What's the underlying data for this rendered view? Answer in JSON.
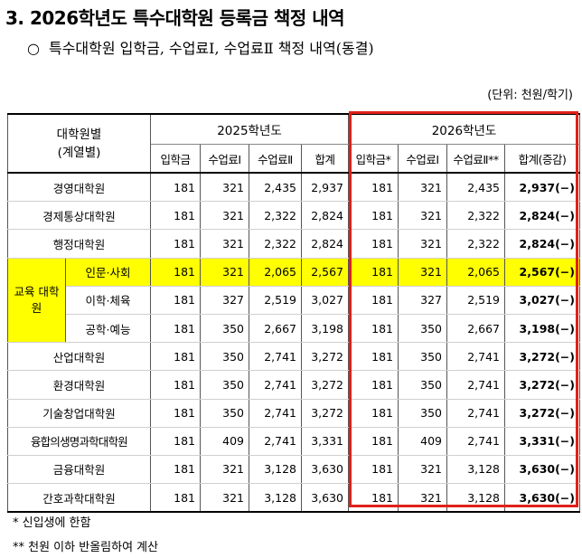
{
  "title": "3. 2026학년도 특수대학원 등록금 책정 내역",
  "subtitle_bullet": "○",
  "subtitle": "특수대학원 입학금, 수업료Ⅰ, 수업료Ⅱ 책정 내역(동결)",
  "unit": "(단위: 천원/학기)",
  "table": {
    "col_group": "대학원별\n(계열별)",
    "year_2025": "2025학년도",
    "year_2026": "2026학년도",
    "sub_2025": [
      "입학금",
      "수업료Ⅰ",
      "수업료Ⅱ",
      "합계"
    ],
    "sub_2026": [
      "입학금*",
      "수업료Ⅰ",
      "수업료Ⅱ**",
      "합계(증감)"
    ],
    "group_label": "교육\n대학원",
    "rows": [
      {
        "name": "경영대학원",
        "v2025": [
          "181",
          "321",
          "2,435",
          "2,937"
        ],
        "v2026": [
          "181",
          "321",
          "2,435",
          "2,937(−)"
        ]
      },
      {
        "name": "경제통상대학원",
        "v2025": [
          "181",
          "321",
          "2,322",
          "2,824"
        ],
        "v2026": [
          "181",
          "321",
          "2,322",
          "2,824(−)"
        ]
      },
      {
        "name": "행정대학원",
        "v2025": [
          "181",
          "321",
          "2,322",
          "2,824"
        ],
        "v2026": [
          "181",
          "321",
          "2,322",
          "2,824(−)"
        ]
      },
      {
        "name": "인문·사회",
        "v2025": [
          "181",
          "321",
          "2,065",
          "2,567"
        ],
        "v2026": [
          "181",
          "321",
          "2,065",
          "2,567(−)"
        ]
      },
      {
        "name": "이학·체육",
        "v2025": [
          "181",
          "327",
          "2,519",
          "3,027"
        ],
        "v2026": [
          "181",
          "327",
          "2,519",
          "3,027(−)"
        ]
      },
      {
        "name": "공학·예능",
        "v2025": [
          "181",
          "350",
          "2,667",
          "3,198"
        ],
        "v2026": [
          "181",
          "350",
          "2,667",
          "3,198(−)"
        ]
      },
      {
        "name": "산업대학원",
        "v2025": [
          "181",
          "350",
          "2,741",
          "3,272"
        ],
        "v2026": [
          "181",
          "350",
          "2,741",
          "3,272(−)"
        ]
      },
      {
        "name": "환경대학원",
        "v2025": [
          "181",
          "350",
          "2,741",
          "3,272"
        ],
        "v2026": [
          "181",
          "350",
          "2,741",
          "3,272(−)"
        ]
      },
      {
        "name": "기술창업대학원",
        "v2025": [
          "181",
          "350",
          "2,741",
          "3,272"
        ],
        "v2026": [
          "181",
          "350",
          "2,741",
          "3,272(−)"
        ]
      },
      {
        "name": "융합의생명과학대학원",
        "v2025": [
          "181",
          "409",
          "2,741",
          "3,331"
        ],
        "v2026": [
          "181",
          "409",
          "2,741",
          "3,331(−)"
        ]
      },
      {
        "name": "금융대학원",
        "v2025": [
          "181",
          "321",
          "3,128",
          "3,630"
        ],
        "v2026": [
          "181",
          "321",
          "3,128",
          "3,630(−)"
        ]
      },
      {
        "name": "간호과학대학원",
        "v2025": [
          "181",
          "321",
          "3,128",
          "3,630"
        ],
        "v2026": [
          "181",
          "321",
          "3,128",
          "3,630(−)"
        ]
      }
    ]
  },
  "notes": [
    "* 신입생에 한함",
    "** 천원 이하 반올림하여 계산"
  ],
  "colors": {
    "highlight": "#ffff00",
    "box": "#e0201a"
  }
}
